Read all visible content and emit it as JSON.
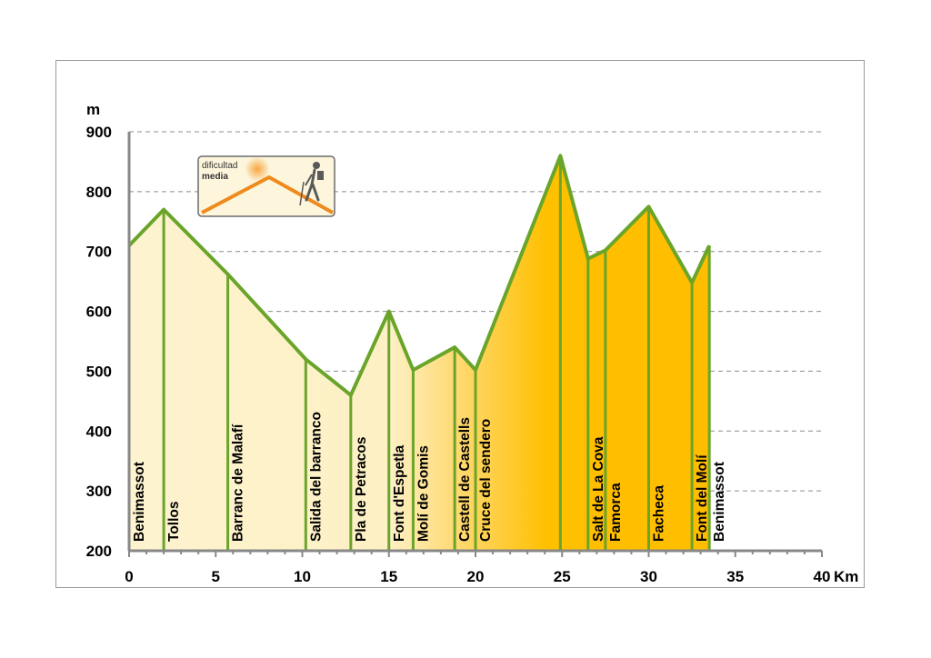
{
  "chart_data": {
    "type": "area",
    "ylabel": "m",
    "xlabel": "Km",
    "xlim": [
      0,
      40
    ],
    "ylim": [
      200,
      900
    ],
    "xticks": [
      0,
      5,
      10,
      15,
      20,
      25,
      30,
      35,
      40
    ],
    "yticks": [
      200,
      300,
      400,
      500,
      600,
      700,
      800,
      900
    ],
    "grid": true,
    "colors": {
      "line": "#6aa52a",
      "fill_light": "#fdf3cf",
      "fill_dark": "#ffbf00",
      "grid": "#8c8c8c"
    },
    "points": [
      {
        "x": 0,
        "y": 710,
        "label": "Benimassot"
      },
      {
        "x": 2,
        "y": 770,
        "label": "Tollos"
      },
      {
        "x": 5.7,
        "y": 662,
        "label": "Barranc de Malafí"
      },
      {
        "x": 10.2,
        "y": 520,
        "label": "Salida del barranco"
      },
      {
        "x": 12.8,
        "y": 460,
        "label": "Pla de Petracos"
      },
      {
        "x": 15,
        "y": 600,
        "label": "Font d'Espetla"
      },
      {
        "x": 16.4,
        "y": 502,
        "label": "Molí de Gomis"
      },
      {
        "x": 18.8,
        "y": 540,
        "label": "Castell de Castells"
      },
      {
        "x": 20,
        "y": 502,
        "label": "Cruce del sendero"
      },
      {
        "x": 24.9,
        "y": 860,
        "label": ""
      },
      {
        "x": 26.5,
        "y": 688,
        "label": "Salt de La Cova"
      },
      {
        "x": 27.5,
        "y": 702,
        "label": "Famorca"
      },
      {
        "x": 30,
        "y": 775,
        "label": "Facheca"
      },
      {
        "x": 32.5,
        "y": 648,
        "label": "Font del Molí"
      },
      {
        "x": 33.5,
        "y": 710,
        "label": "Benimassot"
      }
    ]
  },
  "badge": {
    "line1": "dificultad",
    "line2": "media",
    "hiker_icon": "hiker-icon"
  }
}
